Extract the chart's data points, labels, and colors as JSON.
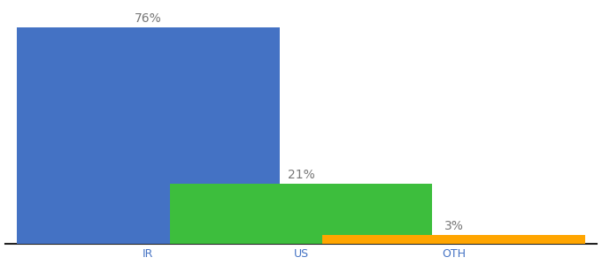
{
  "categories": [
    "IR",
    "US",
    "OTH"
  ],
  "values": [
    76,
    21,
    3
  ],
  "labels": [
    "76%",
    "21%",
    "3%"
  ],
  "bar_colors": [
    "#4472C4",
    "#3DBE3D",
    "#FFA500"
  ],
  "background_color": "#ffffff",
  "ylim": [
    0,
    84
  ],
  "bar_width": 0.55,
  "label_fontsize": 10,
  "tick_fontsize": 9,
  "tick_color": "#4472C4",
  "label_color": "#777777",
  "spine_color": "#222222",
  "x_positions": [
    0.18,
    0.5,
    0.82
  ]
}
